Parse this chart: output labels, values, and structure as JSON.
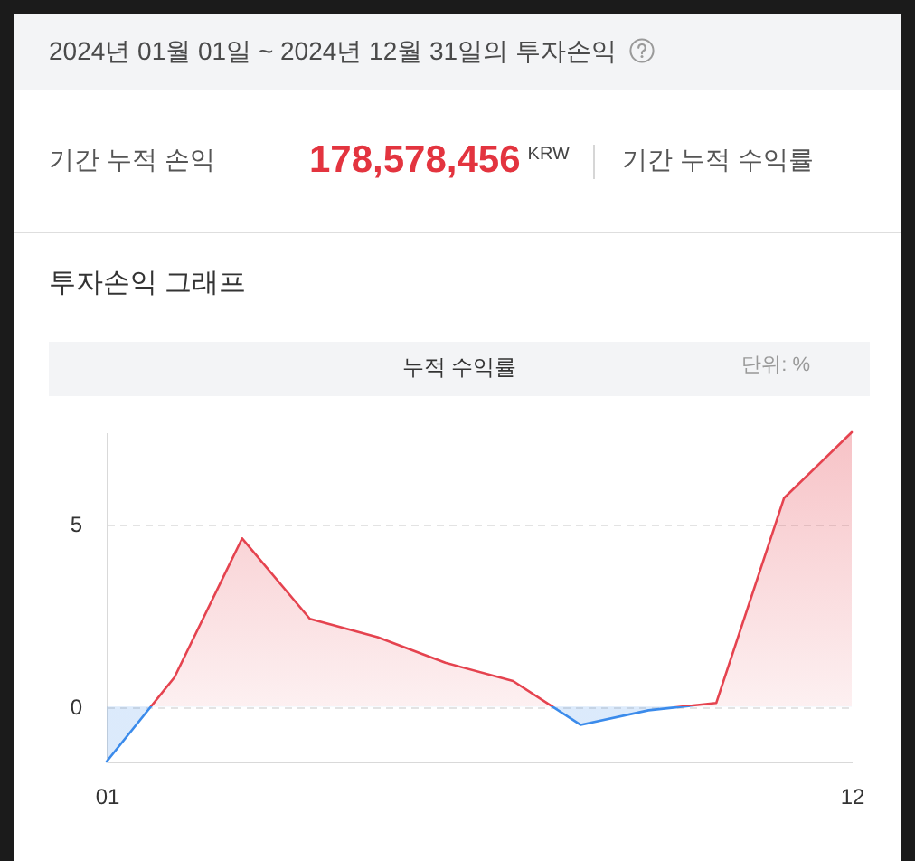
{
  "chart_data": {
    "type": "area",
    "title": "누적 수익률",
    "annotations": [
      "2024년 01월 01일 ~ 2024년 12월 31일의 투자손익",
      "기간 누적 손익",
      "178,578,456",
      "KRW",
      "기간 누적 수익률",
      "투자손익 그래프",
      "단위: %"
    ],
    "categories": [
      "01",
      null,
      null,
      null,
      null,
      null,
      null,
      null,
      null,
      null,
      null,
      "12"
    ],
    "values": [
      -1.5,
      0.8,
      4.6,
      2.4,
      1.9,
      1.2,
      0.7,
      -0.5,
      -0.1,
      0.1,
      5.7,
      7.5
    ],
    "colors": [
      "#3b8beb",
      "#e5434f",
      "#e5434f",
      "#e5434f",
      "#e5434f",
      "#e5434f",
      "#e5434f",
      "#3b8beb",
      "#3b8beb",
      "#e5434f",
      "#e5434f",
      "#e5434f"
    ],
    "ylim": [
      -1.5,
      7.5
    ],
    "yticks": [
      0,
      5
    ],
    "grid": "y"
  }
}
